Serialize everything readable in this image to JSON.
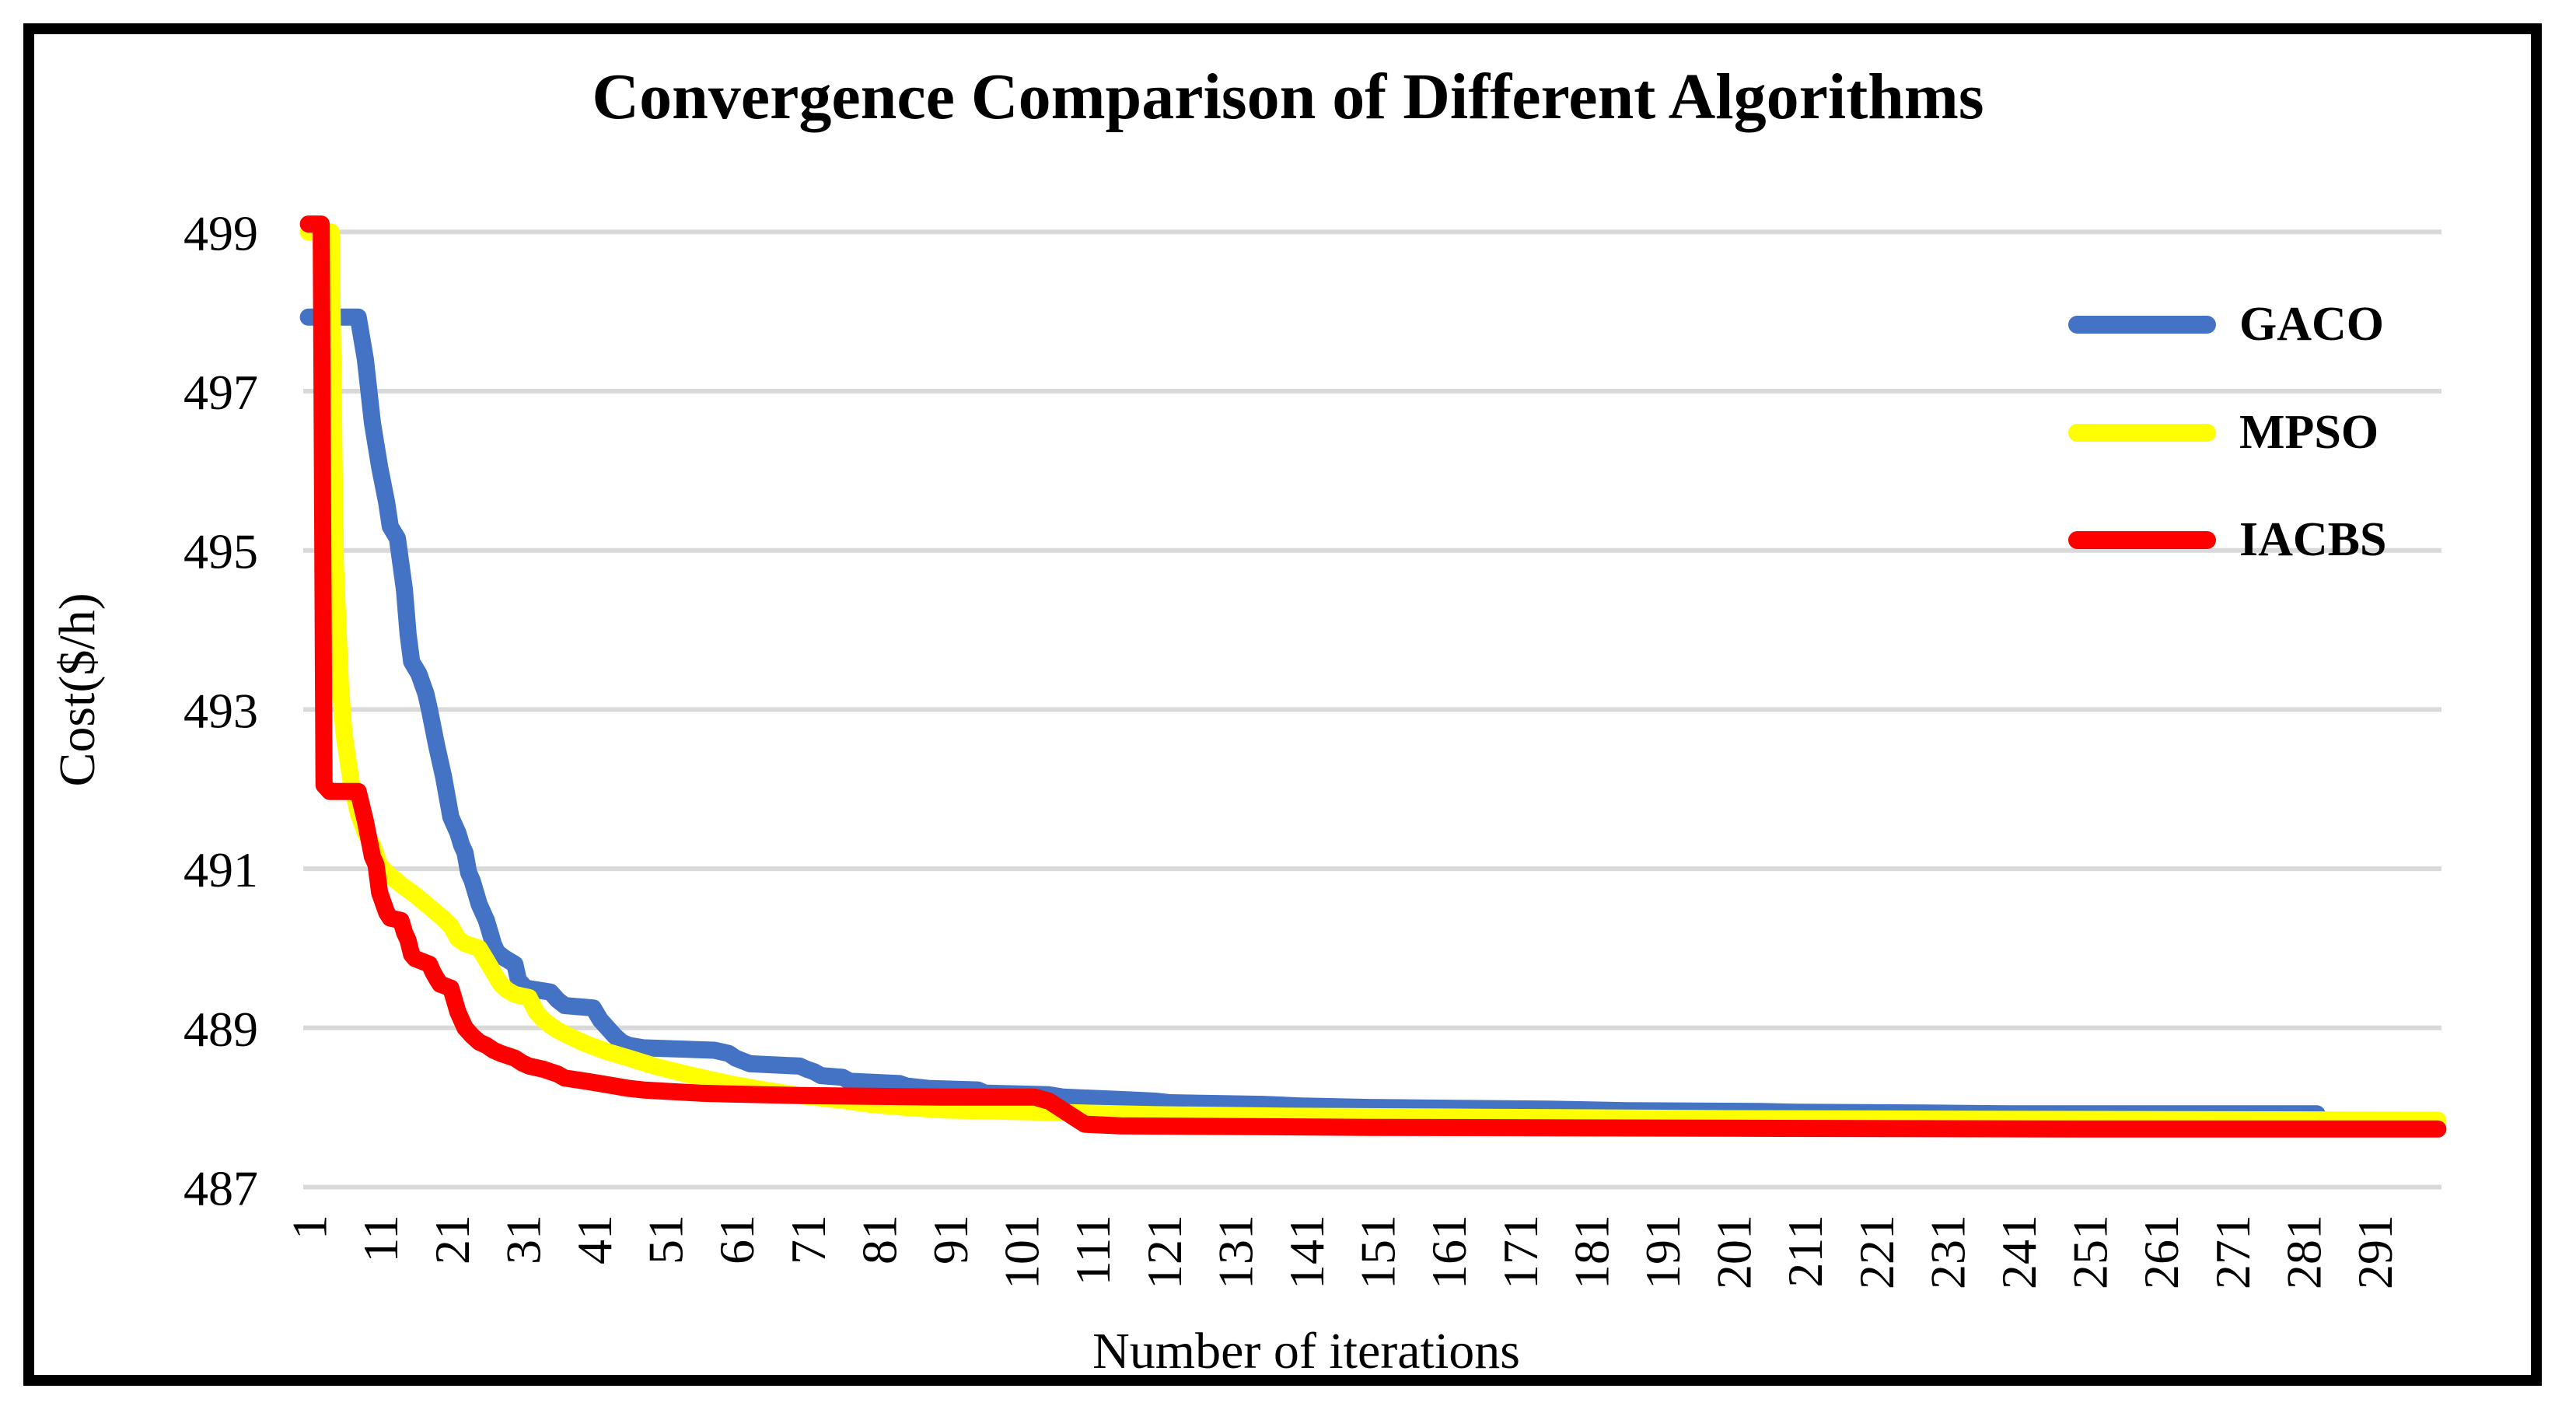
{
  "chart_data": {
    "type": "line",
    "title": "Convergence Comparison of Different Algorithms",
    "xlabel": "Number of iterations",
    "ylabel": "Cost($/h)",
    "x_range": [
      1,
      300
    ],
    "ylim": [
      487,
      499
    ],
    "grid": "horizontal",
    "gridline_color": "#D9D9D9",
    "legend_position": "inside-top-right",
    "y_ticks": [
      499,
      497,
      495,
      493,
      491,
      489,
      487
    ],
    "x_ticks": [
      1,
      11,
      21,
      31,
      41,
      51,
      61,
      71,
      81,
      91,
      101,
      111,
      121,
      131,
      141,
      151,
      161,
      171,
      181,
      191,
      201,
      211,
      221,
      231,
      241,
      251,
      261,
      271,
      281,
      291
    ],
    "series": [
      {
        "name": "GACO",
        "color": "#4472C4",
        "points": [
          [
            1,
            497.93
          ],
          [
            8,
            497.93
          ],
          [
            9,
            497.4
          ],
          [
            10,
            496.6
          ],
          [
            11,
            496.05
          ],
          [
            12,
            495.6
          ],
          [
            12.5,
            495.3
          ],
          [
            13.5,
            495.15
          ],
          [
            14.5,
            494.5
          ],
          [
            15,
            493.95
          ],
          [
            15.5,
            493.6
          ],
          [
            16.5,
            493.45
          ],
          [
            17.5,
            493.2
          ],
          [
            18,
            493.0
          ],
          [
            19,
            492.55
          ],
          [
            20,
            492.15
          ],
          [
            20.5,
            491.9
          ],
          [
            21,
            491.65
          ],
          [
            22,
            491.45
          ],
          [
            22.5,
            491.3
          ],
          [
            23,
            491.2
          ],
          [
            23.5,
            490.95
          ],
          [
            24,
            490.85
          ],
          [
            25,
            490.55
          ],
          [
            26,
            490.35
          ],
          [
            26.5,
            490.2
          ],
          [
            27,
            490.05
          ],
          [
            27.5,
            489.95
          ],
          [
            28.5,
            489.88
          ],
          [
            30,
            489.8
          ],
          [
            30.5,
            489.6
          ],
          [
            31.5,
            489.5
          ],
          [
            35,
            489.45
          ],
          [
            36,
            489.35
          ],
          [
            37,
            489.28
          ],
          [
            41,
            489.25
          ],
          [
            42,
            489.1
          ],
          [
            43,
            489.0
          ],
          [
            44,
            488.9
          ],
          [
            45,
            488.82
          ],
          [
            46,
            488.78
          ],
          [
            48,
            488.75
          ],
          [
            58,
            488.72
          ],
          [
            60,
            488.68
          ],
          [
            61,
            488.62
          ],
          [
            63,
            488.55
          ],
          [
            70,
            488.52
          ],
          [
            71,
            488.48
          ],
          [
            72,
            488.45
          ],
          [
            73,
            488.4
          ],
          [
            76,
            488.38
          ],
          [
            77,
            488.33
          ],
          [
            84,
            488.3
          ],
          [
            85,
            488.27
          ],
          [
            88,
            488.24
          ],
          [
            95,
            488.22
          ],
          [
            96,
            488.18
          ],
          [
            105,
            488.16
          ],
          [
            107,
            488.13
          ],
          [
            115,
            488.1
          ],
          [
            120,
            488.08
          ],
          [
            122,
            488.06
          ],
          [
            135,
            488.04
          ],
          [
            140,
            488.02
          ],
          [
            150,
            488.0
          ],
          [
            162,
            487.99
          ],
          [
            175,
            487.98
          ],
          [
            186,
            487.96
          ],
          [
            205,
            487.95
          ],
          [
            210,
            487.94
          ],
          [
            228,
            487.93
          ],
          [
            240,
            487.92
          ],
          [
            283,
            487.92
          ]
        ]
      },
      {
        "name": "MPSO",
        "color": "#FFFF00",
        "points": [
          [
            1,
            499.0
          ],
          [
            4.2,
            499.0
          ],
          [
            4.8,
            494.8
          ],
          [
            5.5,
            493.3
          ],
          [
            6,
            492.7
          ],
          [
            7,
            492.1
          ],
          [
            8,
            491.7
          ],
          [
            9,
            491.45
          ],
          [
            10,
            491.3
          ],
          [
            11,
            491.05
          ],
          [
            12,
            490.95
          ],
          [
            14,
            490.8
          ],
          [
            16,
            490.67
          ],
          [
            18,
            490.52
          ],
          [
            20,
            490.37
          ],
          [
            21,
            490.28
          ],
          [
            22,
            490.12
          ],
          [
            23,
            490.06
          ],
          [
            25,
            490.0
          ],
          [
            26,
            489.85
          ],
          [
            27,
            489.7
          ],
          [
            28,
            489.55
          ],
          [
            29,
            489.47
          ],
          [
            30,
            489.42
          ],
          [
            32,
            489.38
          ],
          [
            33,
            489.2
          ],
          [
            34,
            489.1
          ],
          [
            35,
            489.03
          ],
          [
            36,
            488.97
          ],
          [
            38,
            488.88
          ],
          [
            40,
            488.8
          ],
          [
            43,
            488.7
          ],
          [
            46,
            488.62
          ],
          [
            50,
            488.51
          ],
          [
            55,
            488.4
          ],
          [
            60,
            488.3
          ],
          [
            65,
            488.22
          ],
          [
            70,
            488.15
          ],
          [
            75,
            488.1
          ],
          [
            80,
            488.04
          ],
          [
            85,
            488.0
          ],
          [
            90,
            487.97
          ],
          [
            100,
            487.95
          ],
          [
            110,
            487.93
          ],
          [
            120,
            487.91
          ],
          [
            140,
            487.89
          ],
          [
            160,
            487.88
          ],
          [
            200,
            487.86
          ],
          [
            250,
            487.85
          ],
          [
            300,
            487.84
          ]
        ]
      },
      {
        "name": "IACBS",
        "color": "#FF0000",
        "points": [
          [
            1,
            499.1
          ],
          [
            2.8,
            499.1
          ],
          [
            3.2,
            492.05
          ],
          [
            4,
            491.97
          ],
          [
            8,
            491.97
          ],
          [
            9,
            491.6
          ],
          [
            10,
            491.15
          ],
          [
            10.5,
            491.05
          ],
          [
            11,
            490.7
          ],
          [
            12,
            490.45
          ],
          [
            12.5,
            490.38
          ],
          [
            14,
            490.35
          ],
          [
            14.5,
            490.2
          ],
          [
            15,
            490.1
          ],
          [
            15.5,
            489.92
          ],
          [
            16,
            489.87
          ],
          [
            18,
            489.8
          ],
          [
            18.5,
            489.7
          ],
          [
            19,
            489.62
          ],
          [
            19.5,
            489.55
          ],
          [
            21,
            489.5
          ],
          [
            21.5,
            489.35
          ],
          [
            22,
            489.2
          ],
          [
            22.5,
            489.1
          ],
          [
            23,
            489.0
          ],
          [
            24,
            488.9
          ],
          [
            25,
            488.82
          ],
          [
            26,
            488.78
          ],
          [
            27,
            488.72
          ],
          [
            28,
            488.68
          ],
          [
            30,
            488.62
          ],
          [
            31,
            488.56
          ],
          [
            32,
            488.52
          ],
          [
            34,
            488.48
          ],
          [
            36,
            488.42
          ],
          [
            37,
            488.37
          ],
          [
            40,
            488.33
          ],
          [
            42,
            488.3
          ],
          [
            44,
            488.27
          ],
          [
            46,
            488.24
          ],
          [
            48,
            488.22
          ],
          [
            52,
            488.2
          ],
          [
            56,
            488.18
          ],
          [
            60,
            488.17
          ],
          [
            65,
            488.16
          ],
          [
            70,
            488.15
          ],
          [
            80,
            488.14
          ],
          [
            90,
            488.13
          ],
          [
            103,
            488.13
          ],
          [
            105,
            488.08
          ],
          [
            110,
            487.79
          ],
          [
            115,
            487.77
          ],
          [
            150,
            487.75
          ],
          [
            200,
            487.74
          ],
          [
            250,
            487.73
          ],
          [
            300,
            487.73
          ]
        ]
      }
    ]
  }
}
